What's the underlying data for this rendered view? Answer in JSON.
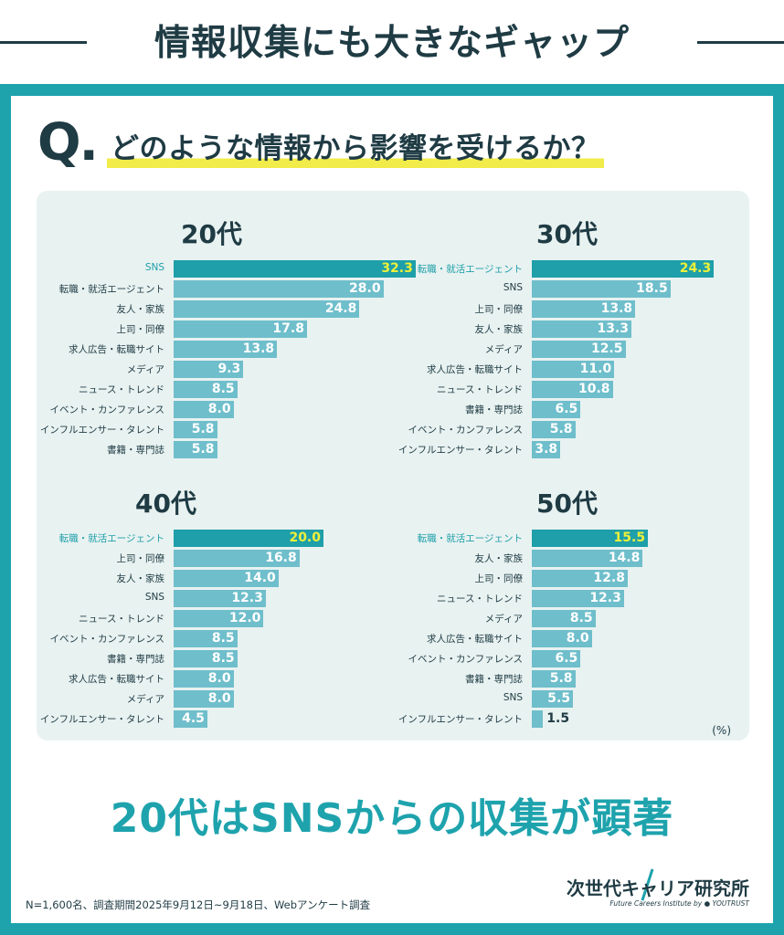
{
  "header": {
    "title": "情報収集にも大きなギャップ"
  },
  "question": {
    "mark": "Q",
    "dot": ".",
    "text": "どのような情報から影響を受けるか？"
  },
  "unit": "(%)",
  "conclusion": "20代はSNSからの収集が顕著",
  "footnote": "N=1,600名、調査期間2025年9月12日~9月18日、Webアンケート調査",
  "brand": {
    "name": "次世代キャリア研究所",
    "sub": "Future Careers Institute by ● YOUTRUST"
  },
  "colors": {
    "accent": "#1ea3ad",
    "bar": "#6fbecb",
    "bar_top": "#1e9fa9",
    "highlight": "#f1ec4a",
    "text": "#1f3b44",
    "panel": "#e8f2f1"
  },
  "chart_data": [
    {
      "type": "bar",
      "orientation": "horizontal",
      "title": "20代",
      "categories": [
        "SNS",
        "転職・就活エージェント",
        "友人・家族",
        "上司・同僚",
        "求人広告・転職サイト",
        "メディア",
        "ニュース・トレンド",
        "イベント・カンファレンス",
        "インフルエンサー・タレント",
        "書籍・専門誌"
      ],
      "values": [
        "32.3",
        "28.0",
        "24.8",
        "17.8",
        "13.8",
        "9.3",
        "8.5",
        "8.0",
        "5.8",
        "5.8"
      ]
    },
    {
      "type": "bar",
      "orientation": "horizontal",
      "title": "30代",
      "categories": [
        "転職・就活エージェント",
        "SNS",
        "上司・同僚",
        "友人・家族",
        "メディア",
        "求人広告・転職サイト",
        "ニュース・トレンド",
        "書籍・専門誌",
        "イベント・カンファレンス",
        "インフルエンサー・タレント"
      ],
      "values": [
        "24.3",
        "18.5",
        "13.8",
        "13.3",
        "12.5",
        "11.0",
        "10.8",
        "6.5",
        "5.8",
        "3.8"
      ]
    },
    {
      "type": "bar",
      "orientation": "horizontal",
      "title": "40代",
      "categories": [
        "転職・就活エージェント",
        "上司・同僚",
        "友人・家族",
        "SNS",
        "ニュース・トレンド",
        "イベント・カンファレンス",
        "書籍・専門誌",
        "求人広告・転職サイト",
        "メディア",
        "インフルエンサー・タレント"
      ],
      "values": [
        "20.0",
        "16.8",
        "14.0",
        "12.3",
        "12.0",
        "8.5",
        "8.5",
        "8.0",
        "8.0",
        "4.5"
      ]
    },
    {
      "type": "bar",
      "orientation": "horizontal",
      "title": "50代",
      "categories": [
        "転職・就活エージェント",
        "友人・家族",
        "上司・同僚",
        "ニュース・トレンド",
        "メディア",
        "求人広告・転職サイト",
        "イベント・カンファレンス",
        "書籍・専門誌",
        "SNS",
        "インフルエンサー・タレント"
      ],
      "values": [
        "15.5",
        "14.8",
        "12.8",
        "12.3",
        "8.5",
        "8.0",
        "6.5",
        "5.8",
        "5.5",
        "1.5"
      ]
    }
  ]
}
